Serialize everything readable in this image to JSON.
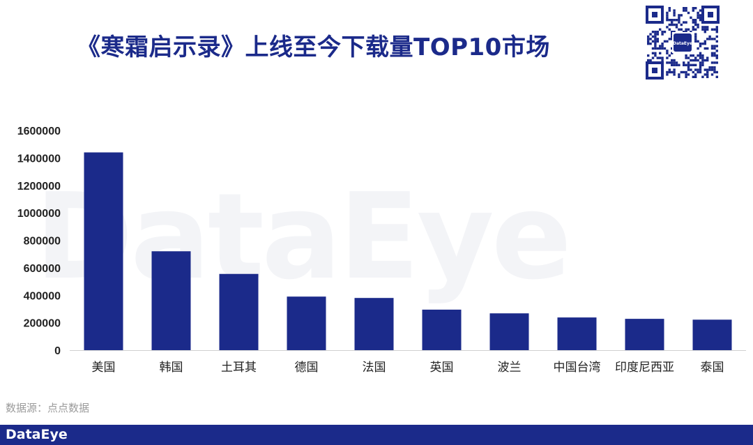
{
  "header": {
    "title": "《寒霜启示录》上线至今下载量TOP10市场",
    "qr_badge_text": "DataEye"
  },
  "watermark": "DataEye",
  "source": "数据源：点点数据",
  "footer": {
    "brand": "DataEye"
  },
  "colors": {
    "bar": "#1b2a8a",
    "title": "#1b2a8a",
    "footer_bg": "#1b2a8a"
  },
  "chart_data": {
    "type": "bar",
    "categories": [
      "美国",
      "韩国",
      "土耳其",
      "德国",
      "法国",
      "英国",
      "波兰",
      "中国台湾",
      "印度尼西亚",
      "泰国"
    ],
    "values": [
      1440000,
      720000,
      555000,
      390000,
      380000,
      295000,
      268000,
      238000,
      228000,
      222000
    ],
    "yticks": [
      "0",
      "200000",
      "400000",
      "600000",
      "800000",
      "1000000",
      "1200000",
      "1400000",
      "1600000"
    ],
    "ylim": [
      0,
      1600000
    ],
    "title": "",
    "xlabel": "",
    "ylabel": "",
    "grid": false,
    "legend": "none"
  }
}
